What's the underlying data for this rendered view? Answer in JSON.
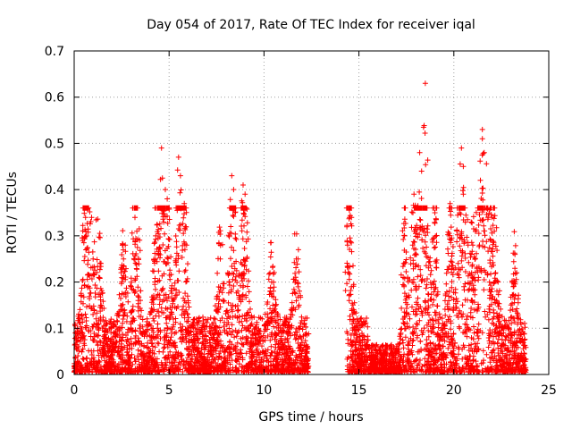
{
  "chart_data": {
    "type": "scatter",
    "title": "Day 054 of 2017, Rate Of TEC Index for receiver iqal",
    "xlabel": "GPS time / hours",
    "ylabel": "ROTI / TECUs",
    "xlim": [
      0,
      25
    ],
    "ylim": [
      0,
      0.7
    ],
    "x_ticks": [
      0,
      5,
      10,
      15,
      20,
      25
    ],
    "y_ticks": [
      0,
      0.1,
      0.2,
      0.3,
      0.4,
      0.5,
      0.6,
      0.7
    ],
    "grid": true,
    "marker": "+",
    "color": "#ff0000",
    "series": [
      {
        "name": "ROTI",
        "segments": [
          [
            0,
            12.35
          ],
          [
            14.35,
            23.8
          ]
        ],
        "peaks": [
          {
            "x": 0.6,
            "y": 0.34
          },
          {
            "x": 0.65,
            "y": 0.3
          },
          {
            "x": 1.0,
            "y": 0.25
          },
          {
            "x": 1.3,
            "y": 0.21
          },
          {
            "x": 2.6,
            "y": 0.25
          },
          {
            "x": 3.2,
            "y": 0.34
          },
          {
            "x": 3.3,
            "y": 0.31
          },
          {
            "x": 4.3,
            "y": 0.3
          },
          {
            "x": 4.6,
            "y": 0.49
          },
          {
            "x": 4.8,
            "y": 0.4
          },
          {
            "x": 4.9,
            "y": 0.38
          },
          {
            "x": 5.5,
            "y": 0.47
          },
          {
            "x": 5.6,
            "y": 0.43
          },
          {
            "x": 5.8,
            "y": 0.37
          },
          {
            "x": 7.7,
            "y": 0.25
          },
          {
            "x": 8.3,
            "y": 0.43
          },
          {
            "x": 8.4,
            "y": 0.4
          },
          {
            "x": 8.9,
            "y": 0.41
          },
          {
            "x": 9.0,
            "y": 0.39
          },
          {
            "x": 10.4,
            "y": 0.2
          },
          {
            "x": 11.7,
            "y": 0.25
          },
          {
            "x": 14.5,
            "y": 0.34
          },
          {
            "x": 14.4,
            "y": 0.28
          },
          {
            "x": 17.4,
            "y": 0.3
          },
          {
            "x": 17.9,
            "y": 0.39
          },
          {
            "x": 18.2,
            "y": 0.48
          },
          {
            "x": 18.3,
            "y": 0.44
          },
          {
            "x": 18.5,
            "y": 0.63
          },
          {
            "x": 19.0,
            "y": 0.35
          },
          {
            "x": 19.8,
            "y": 0.37
          },
          {
            "x": 20.3,
            "y": 0.35
          },
          {
            "x": 20.4,
            "y": 0.49
          },
          {
            "x": 20.5,
            "y": 0.45
          },
          {
            "x": 20.5,
            "y": 0.39
          },
          {
            "x": 21.0,
            "y": 0.28
          },
          {
            "x": 21.5,
            "y": 0.53
          },
          {
            "x": 21.5,
            "y": 0.51
          },
          {
            "x": 21.6,
            "y": 0.48
          },
          {
            "x": 21.4,
            "y": 0.42
          },
          {
            "x": 22.0,
            "y": 0.34
          },
          {
            "x": 22.2,
            "y": 0.22
          },
          {
            "x": 23.2,
            "y": 0.2
          }
        ]
      }
    ]
  }
}
